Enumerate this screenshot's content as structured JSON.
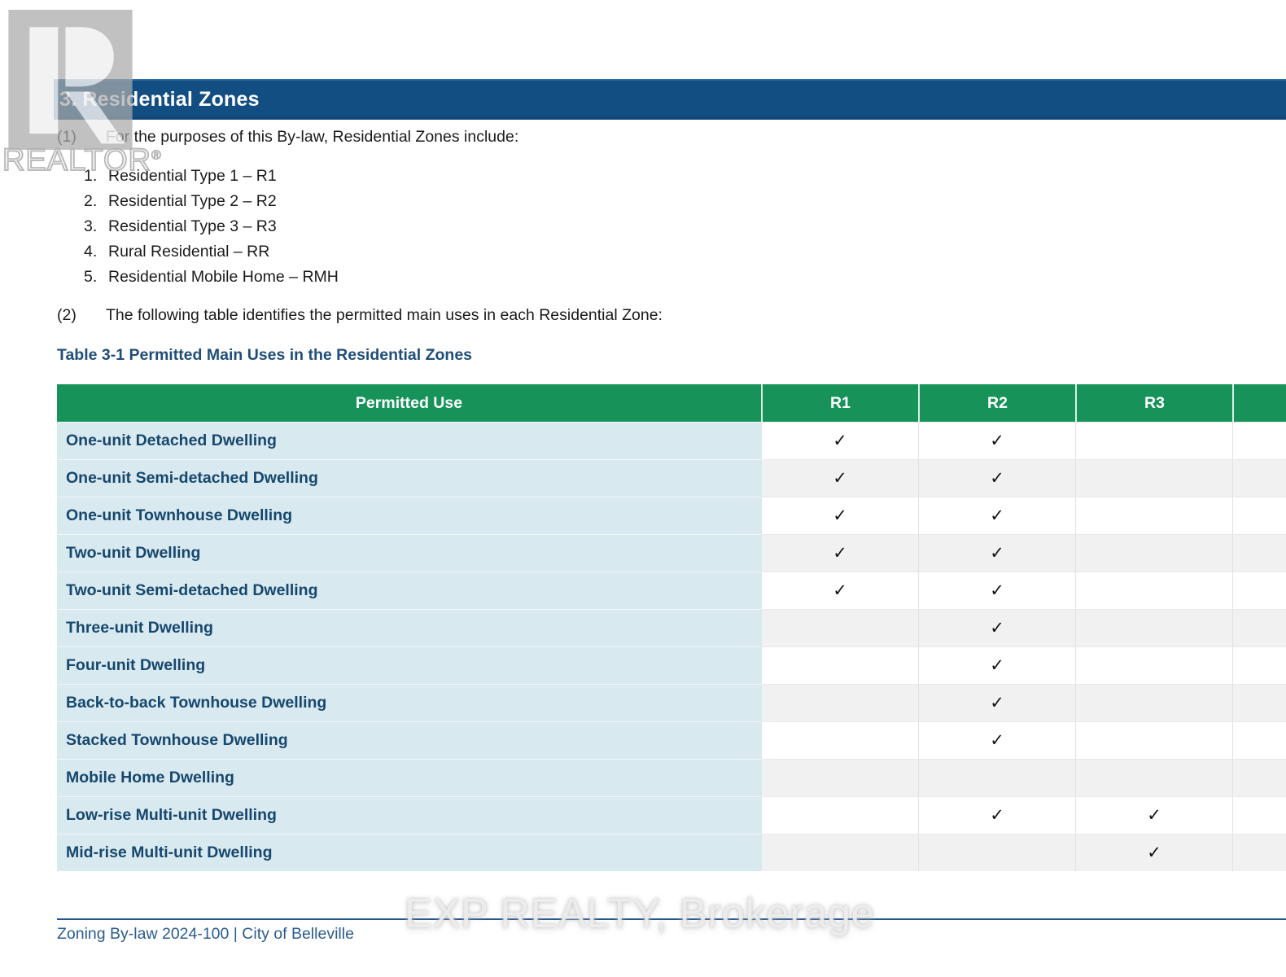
{
  "header": {
    "section_title": "3. Residential Zones"
  },
  "watermarks": {
    "realtor_label": "REALTOR",
    "registered_mark": "®",
    "brokerage_text": "EXP REALTY, Brokerage"
  },
  "clauses": [
    {
      "num": "(1)",
      "text": "For the purposes of this By-law, Residential Zones include:"
    },
    {
      "num": "(2)",
      "text": "The following table identifies the permitted main uses in each Residential Zone:"
    }
  ],
  "zone_list": [
    {
      "num": "1.",
      "text": "Residential Type 1 – R1"
    },
    {
      "num": "2.",
      "text": "Residential Type 2 – R2"
    },
    {
      "num": "3.",
      "text": "Residential Type 3 – R3"
    },
    {
      "num": "4.",
      "text": "Rural Residential – RR"
    },
    {
      "num": "5.",
      "text": "Residential Mobile Home – RMH"
    }
  ],
  "table": {
    "title": "Table 3-1 Permitted Main Uses in the Residential Zones",
    "columns": [
      "Permitted Use",
      "R1",
      "R2",
      "R3",
      ""
    ],
    "check_glyph": "✓",
    "rows": [
      {
        "use": "One-unit Detached Dwelling",
        "checks": [
          true,
          true,
          false,
          false
        ]
      },
      {
        "use": "One-unit Semi-detached Dwelling",
        "checks": [
          true,
          true,
          false,
          false
        ]
      },
      {
        "use": "One-unit Townhouse Dwelling",
        "checks": [
          true,
          true,
          false,
          false
        ]
      },
      {
        "use": "Two-unit Dwelling",
        "checks": [
          true,
          true,
          false,
          false
        ]
      },
      {
        "use": "Two-unit Semi-detached Dwelling",
        "checks": [
          true,
          true,
          false,
          false
        ]
      },
      {
        "use": "Three-unit Dwelling",
        "checks": [
          false,
          true,
          false,
          false
        ]
      },
      {
        "use": "Four-unit Dwelling",
        "checks": [
          false,
          true,
          false,
          false
        ]
      },
      {
        "use": "Back-to-back Townhouse Dwelling",
        "checks": [
          false,
          true,
          false,
          false
        ]
      },
      {
        "use": "Stacked Townhouse Dwelling",
        "checks": [
          false,
          true,
          false,
          false
        ]
      },
      {
        "use": "Mobile Home Dwelling",
        "checks": [
          false,
          false,
          false,
          false
        ]
      },
      {
        "use": "Low-rise Multi-unit Dwelling",
        "checks": [
          false,
          true,
          true,
          false
        ]
      },
      {
        "use": "Mid-rise Multi-unit Dwelling",
        "checks": [
          false,
          false,
          true,
          false
        ]
      }
    ]
  },
  "footer": {
    "text": "Zoning By-law 2024-100 | City of Belleville"
  },
  "colors": {
    "header_bar_blue": "#134E82",
    "table_header_green": "#17935A",
    "label_column_blue": "#D9E9F0",
    "label_text_blue": "#16476D",
    "title_blue": "#1F4E79",
    "footer_blue": "#2A5C90",
    "watermark_gray": "#B3B3B3"
  }
}
